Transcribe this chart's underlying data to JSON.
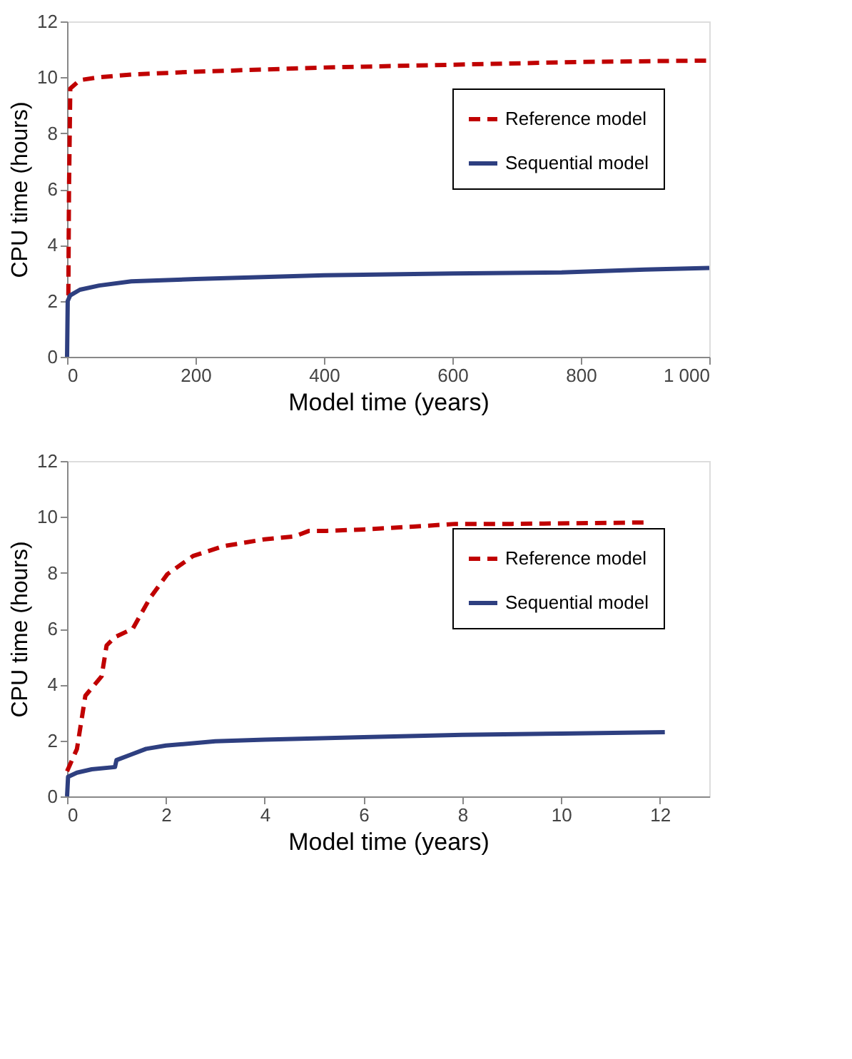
{
  "chart_data": [
    {
      "type": "line",
      "xlabel": "Model time (years)",
      "ylabel": "CPU time (hours)",
      "xlim": [
        0,
        1000
      ],
      "ylim": [
        0,
        12
      ],
      "xticks": [
        0,
        200,
        400,
        600,
        800,
        {
          "value": 1000,
          "label": "1 000"
        }
      ],
      "yticks": [
        0,
        2,
        4,
        6,
        8,
        10,
        12
      ],
      "grid": false,
      "legend": "right",
      "marker": "none",
      "series": [
        {
          "name": "Reference model",
          "color": "#c00000",
          "line_style": "dashed",
          "x": [
            2,
            3,
            5,
            20,
            50,
            100,
            200,
            400,
            600,
            800,
            1000
          ],
          "values": [
            2.2,
            6.0,
            9.6,
            9.9,
            10.0,
            10.1,
            10.2,
            10.35,
            10.45,
            10.55,
            10.6
          ]
        },
        {
          "name": "Sequential model",
          "color": "#2e3f80",
          "line_style": "solid",
          "x": [
            0,
            1,
            5,
            20,
            50,
            100,
            200,
            400,
            600,
            770,
            900,
            1000
          ],
          "values": [
            0,
            2.0,
            2.2,
            2.4,
            2.55,
            2.7,
            2.78,
            2.92,
            2.98,
            3.02,
            3.12,
            3.18
          ]
        }
      ]
    },
    {
      "type": "line",
      "xlabel": "Model time (years)",
      "ylabel": "CPU time (hours)",
      "xlim": [
        0,
        13
      ],
      "ylim": [
        0,
        12
      ],
      "xticks": [
        0,
        2,
        4,
        6,
        8,
        10,
        12
      ],
      "yticks": [
        0,
        2,
        4,
        6,
        8,
        10,
        12
      ],
      "grid": false,
      "legend": "right",
      "marker": "none",
      "series": [
        {
          "name": "Reference model",
          "color": "#c00000",
          "line_style": "dashed",
          "x": [
            0,
            0.2,
            0.37,
            0.7,
            0.8,
            0.97,
            1.33,
            1.68,
            2.03,
            2.55,
            3.16,
            4.0,
            4.6,
            4.9,
            5.25,
            6,
            7,
            7.86,
            9,
            11.7
          ],
          "values": [
            0.9,
            1.7,
            3.6,
            4.3,
            5.4,
            5.7,
            6.0,
            7.1,
            7.95,
            8.6,
            8.95,
            9.2,
            9.3,
            9.5,
            9.5,
            9.55,
            9.65,
            9.75,
            9.75,
            9.8
          ]
        },
        {
          "name": "Sequential model",
          "color": "#2e3f80",
          "line_style": "solid",
          "x": [
            0,
            0.02,
            0.2,
            0.5,
            0.97,
            1.0,
            1.3,
            1.6,
            2,
            3,
            4,
            6,
            8,
            10,
            12.1
          ],
          "values": [
            0,
            0.7,
            0.85,
            0.97,
            1.05,
            1.3,
            1.5,
            1.7,
            1.82,
            1.97,
            2.03,
            2.12,
            2.2,
            2.25,
            2.3
          ]
        }
      ]
    }
  ]
}
